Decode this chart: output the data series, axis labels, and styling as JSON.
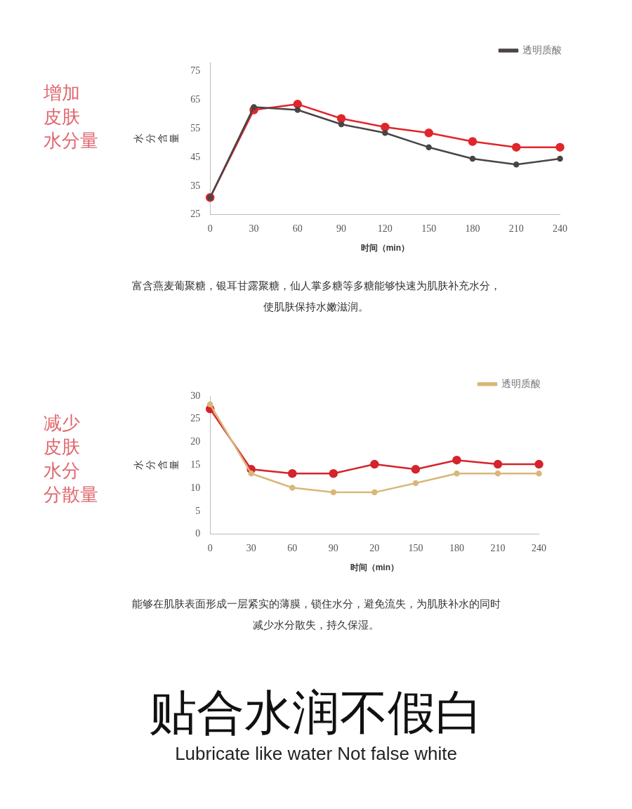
{
  "chart_data": [
    {
      "type": "line",
      "title": "增加皮肤水分量",
      "xlabel": "时间（min）",
      "ylabel": "水分含量",
      "categories": [
        "0",
        "30",
        "60",
        "90",
        "120",
        "150",
        "180",
        "210",
        "240"
      ],
      "series": [
        {
          "name": "透明质酸",
          "color": "#4a4446",
          "values": [
            31,
            62.5,
            61.5,
            56.5,
            53.5,
            48.5,
            44.5,
            42.5,
            44.5
          ]
        },
        {
          "color": "#e0262a",
          "values": [
            31,
            61.5,
            63.5,
            58.5,
            55.5,
            53.5,
            50.5,
            48.5,
            48.5
          ]
        }
      ],
      "ylim": [
        25,
        78
      ],
      "yticks": [
        25,
        35,
        45,
        55,
        65,
        75
      ],
      "grid": false,
      "legend": "top right",
      "marker": "circle",
      "annotations": [
        "富含燕麦葡聚糖，银耳甘露聚糖，仙人掌多糖等多糖能够快速为肌肤补充水分，使肌肤保持水嫩滋润。"
      ]
    },
    {
      "type": "line",
      "title": "减少皮肤水分分散量",
      "xlabel": "时间（min）",
      "ylabel": "水分含量",
      "categories": [
        "0",
        "30",
        "60",
        "90",
        "20",
        "150",
        "180",
        "210",
        "240"
      ],
      "series": [
        {
          "name": "透明质酸",
          "color": "#d9b77a",
          "values": [
            28.2,
            13.2,
            10.1,
            9.1,
            9.1,
            11.1,
            13.2,
            13.2,
            13.2
          ]
        },
        {
          "color": "#d4242c",
          "values": [
            27.2,
            14.1,
            13.2,
            13.2,
            15.2,
            14.1,
            16.1,
            15.2,
            15.2
          ]
        }
      ],
      "ylim": [
        0,
        30
      ],
      "yticks": [
        0,
        5,
        10,
        15,
        20,
        25,
        30
      ],
      "grid": false,
      "legend": "top right",
      "marker": "circle",
      "annotations": [
        "能够在肌肤表面形成一层紧实的薄膜，锁住水分，避免流失，为肌肤补水的同时减少水分散失，持久保湿。",
        "贴合水润不假白",
        "Lubricate like water  Not false white"
      ]
    }
  ]
}
